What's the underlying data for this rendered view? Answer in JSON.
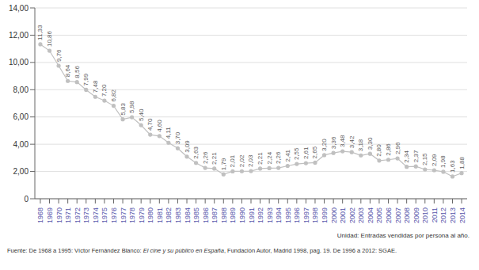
{
  "chart_data": {
    "type": "line",
    "x": [
      1968,
      1969,
      1970,
      1971,
      1972,
      1973,
      1974,
      1975,
      1976,
      1977,
      1978,
      1979,
      1980,
      1981,
      1982,
      1983,
      1984,
      1985,
      1986,
      1987,
      1988,
      1989,
      1990,
      1991,
      1992,
      1993,
      1994,
      1995,
      1996,
      1997,
      1998,
      1999,
      2000,
      2001,
      2002,
      2003,
      2004,
      2005,
      2006,
      2007,
      2008,
      2009,
      2010,
      2011,
      2012,
      2013,
      2014
    ],
    "values": [
      11.33,
      10.86,
      9.76,
      8.64,
      8.56,
      7.99,
      7.48,
      7.2,
      6.82,
      5.83,
      5.98,
      5.4,
      4.7,
      4.6,
      4.11,
      3.7,
      3.09,
      2.63,
      2.26,
      2.21,
      1.79,
      2.01,
      2.02,
      2.03,
      2.21,
      2.24,
      2.26,
      2.41,
      2.55,
      2.61,
      2.65,
      3.2,
      3.36,
      3.48,
      3.42,
      3.18,
      3.3,
      2.8,
      2.86,
      2.96,
      2.34,
      2.37,
      2.15,
      2.09,
      1.98,
      1.63,
      1.88
    ],
    "value_labels": [
      "11,33",
      "10,86",
      "9,76",
      "8,64",
      "8,56",
      "7,99",
      "7,48",
      "7,20",
      "6,82",
      "5,83",
      "5,98",
      "5,40",
      "4,70",
      "4,60",
      "4,11",
      "3,70",
      "3,09",
      "2,63",
      "2,26",
      "2,21",
      "1,79",
      "2,01",
      "2,02",
      "2,03",
      "2,21",
      "2,24",
      "2,26",
      "2,41",
      "2,55",
      "2,61",
      "2,65",
      "3,20",
      "3,36",
      "3,48",
      "3,42",
      "3,18",
      "3,30",
      "2,80",
      "2,86",
      "2,96",
      "2,34",
      "2,37",
      "2,15",
      "2,09",
      "1,98",
      "1,63",
      "1,88"
    ],
    "data_labels": true,
    "color": "#c0c0c0",
    "marker": "circle",
    "xlim": [
      1967.4,
      2014.6
    ],
    "xticks": [
      1968,
      1969,
      1970,
      1971,
      1972,
      1973,
      1974,
      1975,
      1976,
      1977,
      1978,
      1979,
      1980,
      1981,
      1982,
      1983,
      1984,
      1985,
      1986,
      1987,
      1988,
      1989,
      1990,
      1991,
      1992,
      1993,
      1994,
      1995,
      1996,
      1997,
      1998,
      1999,
      2000,
      2001,
      2002,
      2003,
      2004,
      2005,
      2006,
      2007,
      2008,
      2009,
      2010,
      2011,
      2012,
      2013,
      2014
    ],
    "ylim": [
      0,
      14
    ],
    "yticks": [
      0,
      {
        "value": 2,
        "label": "2,00"
      },
      {
        "value": 4,
        "label": "4,00"
      },
      {
        "value": 6,
        "label": "6,00"
      },
      {
        "value": 8,
        "label": "8,00"
      },
      {
        "value": 10,
        "label": "10,00"
      },
      {
        "value": 12,
        "label": "12,00"
      },
      {
        "value": 14,
        "label": "14,00"
      }
    ],
    "grid": true,
    "annotations": [
      "Unidad: Entradas vendidas por persona al año.",
      [
        "Fuente: De 1968 a 1995: Víctor Fernández Blanco: ",
        "El cine y su público en España",
        ", Fundación Autor, Madrid 1998, pag. 19. De 1996 a 2012: SGAE."
      ]
    ]
  }
}
